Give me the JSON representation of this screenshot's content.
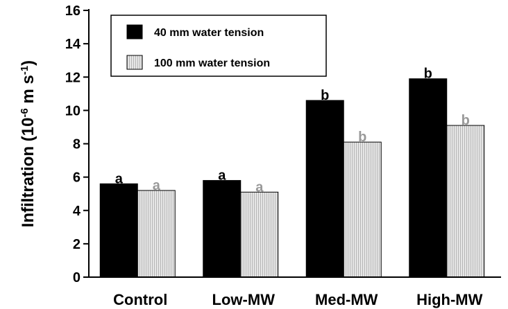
{
  "chart_data": {
    "type": "bar",
    "y_label_parts": [
      "Infiltration (10",
      "-6",
      " m s",
      "-1",
      ")"
    ],
    "categories": [
      "Control",
      "Low-MW",
      "Med-MW",
      "High-MW"
    ],
    "series": [
      {
        "name": "40 mm water tension",
        "color": "#000000",
        "values": [
          5.6,
          5.8,
          10.6,
          11.9
        ],
        "letters": [
          "a",
          "a",
          "b",
          "b"
        ],
        "letter_color": "#000000"
      },
      {
        "name": "100 mm water tension",
        "color": "#d9d9d9",
        "values": [
          5.2,
          5.1,
          8.1,
          9.1
        ],
        "letters": [
          "a",
          "a",
          "b",
          "b"
        ],
        "letter_color": "#999999"
      }
    ],
    "ylim": [
      0,
      16
    ],
    "yticks": [
      0,
      2,
      4,
      6,
      8,
      10,
      12,
      14,
      16
    ],
    "grid": false
  }
}
